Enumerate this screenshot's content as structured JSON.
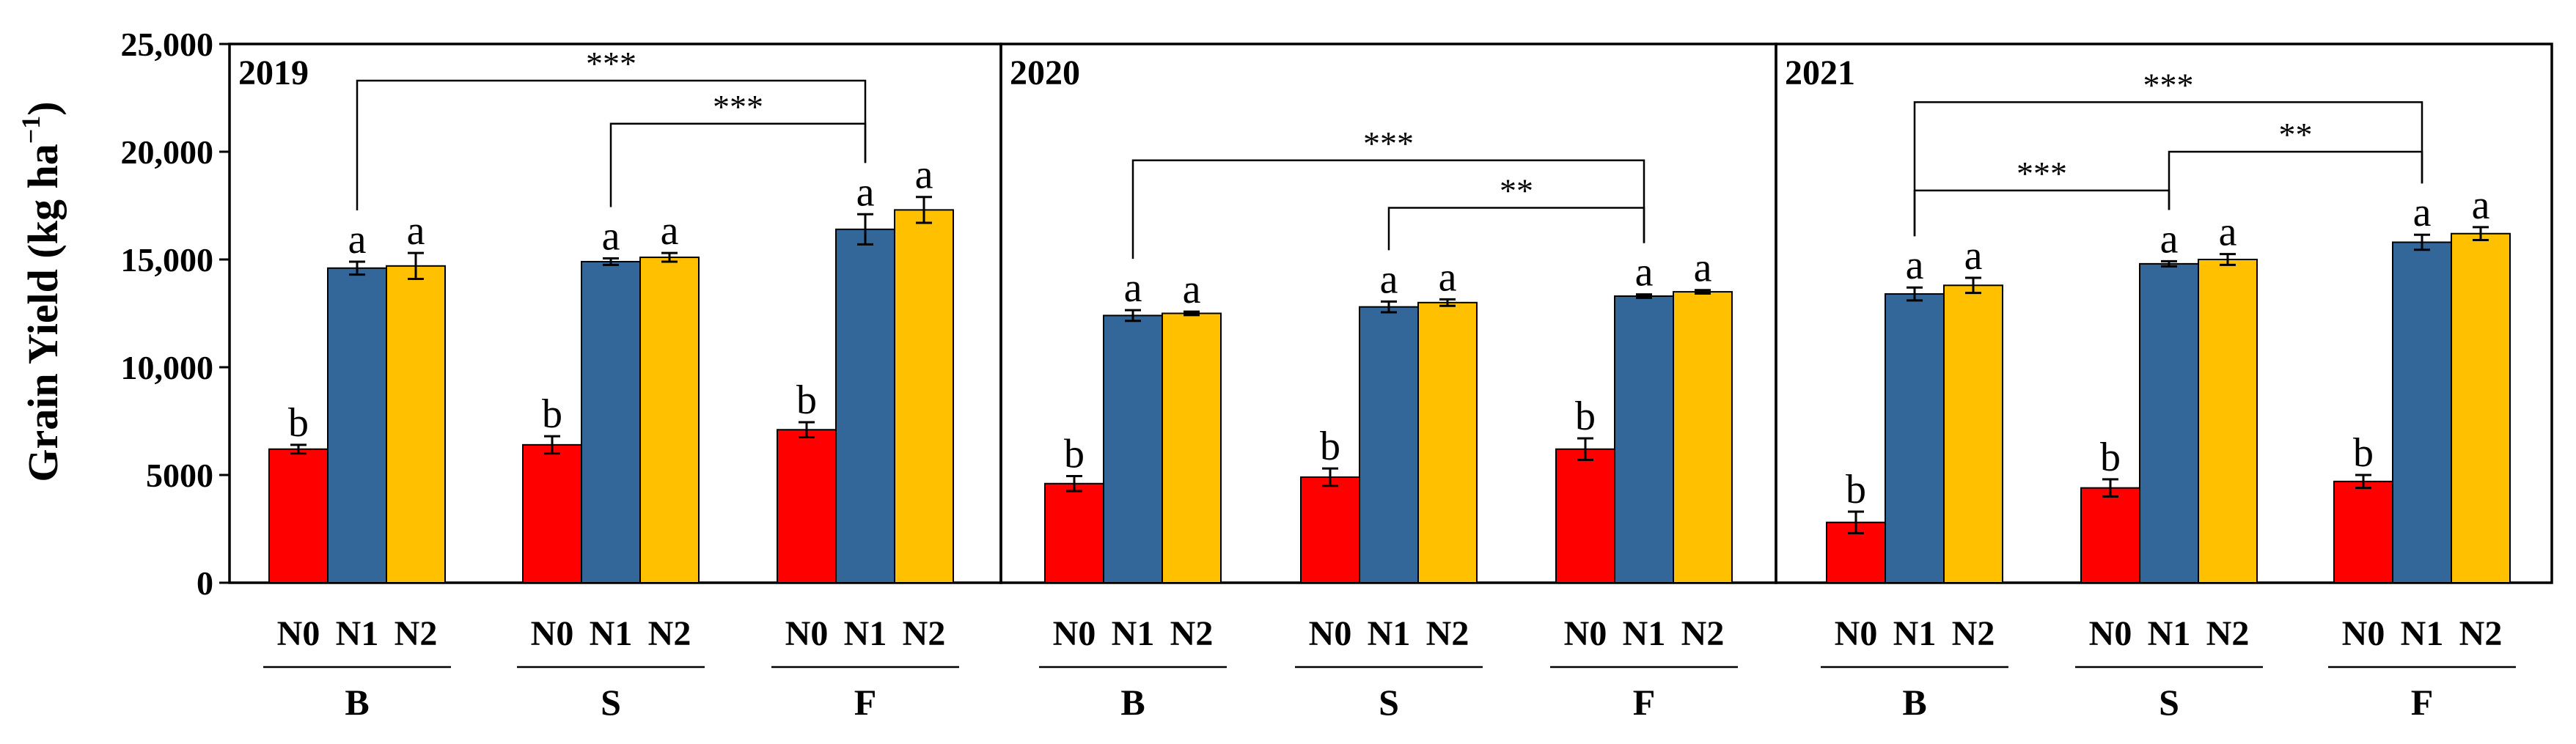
{
  "chart_data": {
    "type": "bar",
    "y_axis": {
      "title_main": "Grain Yield (kg ha",
      "title_sup": "−1",
      "title_end": ")",
      "ylim": [
        0,
        25000
      ],
      "ticks": [
        0,
        5000,
        10000,
        15000,
        20000,
        25000
      ],
      "tick_labels": [
        "0",
        "5000",
        "10,000",
        "15,000",
        "20,000",
        "25,000"
      ]
    },
    "series": [
      {
        "name": "N0",
        "color": "#ff0000"
      },
      {
        "name": "N1",
        "color": "#336699"
      },
      {
        "name": "N2",
        "color": "#ffc000"
      }
    ],
    "categories": [
      "B",
      "S",
      "F"
    ],
    "panels": [
      {
        "year": "2019",
        "groups": [
          {
            "category": "B",
            "values": [
              6200,
              14600,
              14700
            ],
            "errors": [
              200,
              300,
              600
            ],
            "letters": [
              "b",
              "a",
              "a"
            ]
          },
          {
            "category": "S",
            "values": [
              6400,
              14900,
              15100
            ],
            "errors": [
              400,
              150,
              200
            ],
            "letters": [
              "b",
              "a",
              "a"
            ]
          },
          {
            "category": "F",
            "values": [
              7100,
              16400,
              17300
            ],
            "errors": [
              350,
              700,
              600
            ],
            "letters": [
              "b",
              "a",
              "a"
            ]
          }
        ],
        "brackets": [
          {
            "from": [
              0,
              1
            ],
            "to": [
              2,
              1
            ],
            "level": 23300,
            "label": "***"
          },
          {
            "from": [
              1,
              1
            ],
            "to": [
              2,
              1
            ],
            "level": 21300,
            "label": "***"
          }
        ]
      },
      {
        "year": "2020",
        "groups": [
          {
            "category": "B",
            "values": [
              4600,
              12400,
              12500
            ],
            "errors": [
              350,
              250,
              80
            ],
            "letters": [
              "b",
              "a",
              "a"
            ]
          },
          {
            "category": "S",
            "values": [
              4900,
              12800,
              13000
            ],
            "errors": [
              400,
              250,
              150
            ],
            "letters": [
              "b",
              "a",
              "a"
            ]
          },
          {
            "category": "F",
            "values": [
              6200,
              13300,
              13500
            ],
            "errors": [
              500,
              80,
              80
            ],
            "letters": [
              "b",
              "a",
              "a"
            ]
          }
        ],
        "brackets": [
          {
            "from": [
              0,
              1
            ],
            "to": [
              2,
              1
            ],
            "level": 19600,
            "label": "***"
          },
          {
            "from": [
              1,
              1
            ],
            "to": [
              2,
              1
            ],
            "level": 17400,
            "label": "**"
          }
        ]
      },
      {
        "year": "2021",
        "groups": [
          {
            "category": "B",
            "values": [
              2800,
              13400,
              13800
            ],
            "errors": [
              500,
              300,
              350
            ],
            "letters": [
              "b",
              "a",
              "a"
            ]
          },
          {
            "category": "S",
            "values": [
              4400,
              14800,
              15000
            ],
            "errors": [
              400,
              120,
              250
            ],
            "letters": [
              "b",
              "a",
              "a"
            ]
          },
          {
            "category": "F",
            "values": [
              4700,
              15800,
              16200
            ],
            "errors": [
              300,
              350,
              300
            ],
            "letters": [
              "b",
              "a",
              "a"
            ]
          }
        ],
        "brackets": [
          {
            "from": [
              0,
              1
            ],
            "to": [
              2,
              1
            ],
            "level": 22300,
            "label": "***"
          },
          {
            "from": [
              0,
              1
            ],
            "to": [
              1,
              1
            ],
            "level": 18200,
            "label": "***"
          },
          {
            "from": [
              1,
              1
            ],
            "to": [
              2,
              1
            ],
            "level": 20000,
            "label": "**"
          }
        ]
      }
    ]
  }
}
